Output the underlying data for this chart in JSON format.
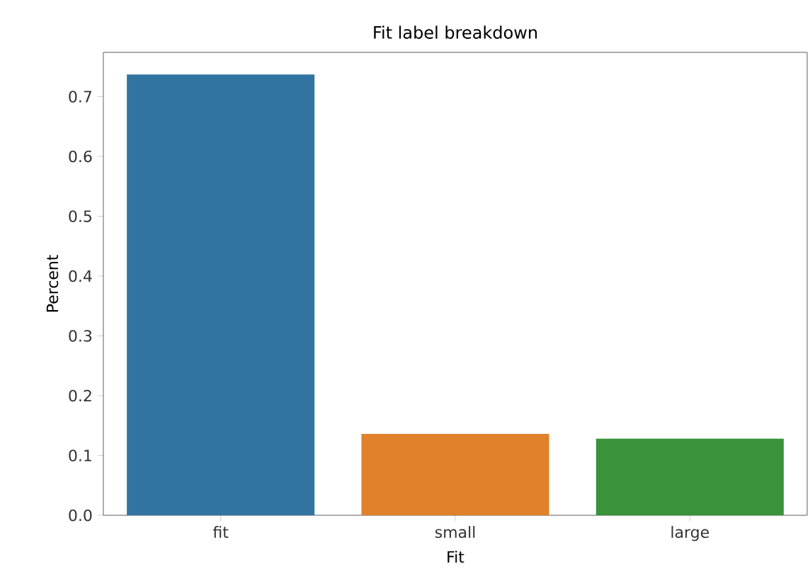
{
  "chart_data": {
    "type": "bar",
    "title": "Fit label breakdown",
    "xlabel": "Fit",
    "ylabel": "Percent",
    "categories": [
      "fit",
      "small",
      "large"
    ],
    "values": [
      0.737,
      0.136,
      0.128
    ],
    "colors": [
      "#3274a1",
      "#e1812c",
      "#3a923a"
    ],
    "ylim": [
      0,
      0.774
    ],
    "yticks": [
      {
        "value": 0,
        "label": "0.0"
      },
      0.1,
      0.2,
      0.3,
      0.4,
      0.5,
      0.6,
      0.7
    ],
    "grid": false
  }
}
